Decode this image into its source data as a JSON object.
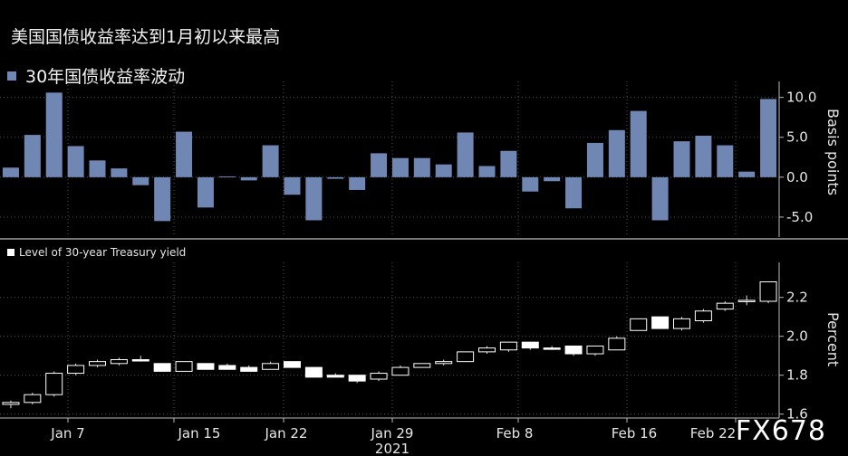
{
  "title": "美国国债收益率达到1月初以来最高",
  "watermark": "FX678",
  "chart_data": [
    {
      "type": "bar",
      "legend": "30年国债收益率波动",
      "ylabel": "Basis points",
      "ylim": [
        -7.5,
        12
      ],
      "yticks": [
        10.0,
        5.0,
        0.0,
        -5.0
      ],
      "color": "#7086b3",
      "values": [
        1.2,
        5.3,
        10.6,
        3.9,
        2.1,
        1.1,
        -1.0,
        -5.5,
        5.7,
        -3.8,
        0.1,
        -0.4,
        4.0,
        -2.2,
        -5.4,
        -0.2,
        -1.6,
        3.0,
        2.4,
        2.4,
        1.6,
        5.6,
        1.4,
        3.3,
        -1.8,
        -0.5,
        -3.9,
        4.3,
        5.9,
        8.3,
        -5.4,
        4.5,
        5.2,
        4.0,
        0.7,
        9.8
      ]
    },
    {
      "type": "candlestick",
      "legend": "Level of 30-year Treasury yield",
      "ylabel": "Percent",
      "ylim": [
        1.58,
        2.38
      ],
      "yticks": [
        2.2,
        2.0,
        1.8,
        1.6
      ],
      "x_ticks": [
        "Jan 7",
        "Jan 15",
        "Jan 22",
        "Jan 29",
        "Feb 8",
        "Feb 16",
        "Feb 22"
      ],
      "x_year": "2021",
      "candles": [
        {
          "o": 1.65,
          "c": 1.66,
          "h": 1.67,
          "l": 1.63
        },
        {
          "o": 1.66,
          "c": 1.7,
          "h": 1.71,
          "l": 1.65
        },
        {
          "o": 1.7,
          "c": 1.81,
          "h": 1.82,
          "l": 1.69
        },
        {
          "o": 1.81,
          "c": 1.85,
          "h": 1.86,
          "l": 1.8
        },
        {
          "o": 1.85,
          "c": 1.87,
          "h": 1.88,
          "l": 1.84
        },
        {
          "o": 1.86,
          "c": 1.88,
          "h": 1.89,
          "l": 1.85
        },
        {
          "o": 1.88,
          "c": 1.875,
          "h": 1.9,
          "l": 1.87
        },
        {
          "o": 1.86,
          "c": 1.82,
          "h": 1.86,
          "l": 1.82
        },
        {
          "o": 1.82,
          "c": 1.87,
          "h": 1.87,
          "l": 1.82
        },
        {
          "o": 1.86,
          "c": 1.83,
          "h": 1.86,
          "l": 1.83
        },
        {
          "o": 1.85,
          "c": 1.83,
          "h": 1.86,
          "l": 1.83
        },
        {
          "o": 1.84,
          "c": 1.82,
          "h": 1.85,
          "l": 1.82
        },
        {
          "o": 1.83,
          "c": 1.86,
          "h": 1.87,
          "l": 1.83
        },
        {
          "o": 1.87,
          "c": 1.84,
          "h": 1.87,
          "l": 1.84
        },
        {
          "o": 1.84,
          "c": 1.79,
          "h": 1.84,
          "l": 1.79
        },
        {
          "o": 1.8,
          "c": 1.79,
          "h": 1.81,
          "l": 1.79
        },
        {
          "o": 1.8,
          "c": 1.77,
          "h": 1.8,
          "l": 1.76
        },
        {
          "o": 1.78,
          "c": 1.81,
          "h": 1.82,
          "l": 1.77
        },
        {
          "o": 1.8,
          "c": 1.84,
          "h": 1.85,
          "l": 1.8
        },
        {
          "o": 1.84,
          "c": 1.86,
          "h": 1.86,
          "l": 1.84
        },
        {
          "o": 1.86,
          "c": 1.87,
          "h": 1.88,
          "l": 1.85
        },
        {
          "o": 1.87,
          "c": 1.92,
          "h": 1.92,
          "l": 1.87
        },
        {
          "o": 1.92,
          "c": 1.94,
          "h": 1.95,
          "l": 1.91
        },
        {
          "o": 1.93,
          "c": 1.97,
          "h": 1.97,
          "l": 1.92
        },
        {
          "o": 1.97,
          "c": 1.94,
          "h": 1.97,
          "l": 1.93
        },
        {
          "o": 1.94,
          "c": 1.935,
          "h": 1.95,
          "l": 1.93
        },
        {
          "o": 1.95,
          "c": 1.91,
          "h": 1.95,
          "l": 1.9
        },
        {
          "o": 1.91,
          "c": 1.95,
          "h": 1.95,
          "l": 1.9
        },
        {
          "o": 1.93,
          "c": 1.99,
          "h": 2.0,
          "l": 1.93
        },
        {
          "o": 2.03,
          "c": 2.09,
          "h": 2.09,
          "l": 2.03
        },
        {
          "o": 2.1,
          "c": 2.04,
          "h": 2.1,
          "l": 2.04
        },
        {
          "o": 2.04,
          "c": 2.09,
          "h": 2.1,
          "l": 2.03
        },
        {
          "o": 2.08,
          "c": 2.13,
          "h": 2.14,
          "l": 2.07
        },
        {
          "o": 2.14,
          "c": 2.17,
          "h": 2.18,
          "l": 2.13
        },
        {
          "o": 2.18,
          "c": 2.185,
          "h": 2.21,
          "l": 2.16
        },
        {
          "o": 2.18,
          "c": 2.28,
          "h": 2.28,
          "l": 2.17
        }
      ]
    }
  ]
}
